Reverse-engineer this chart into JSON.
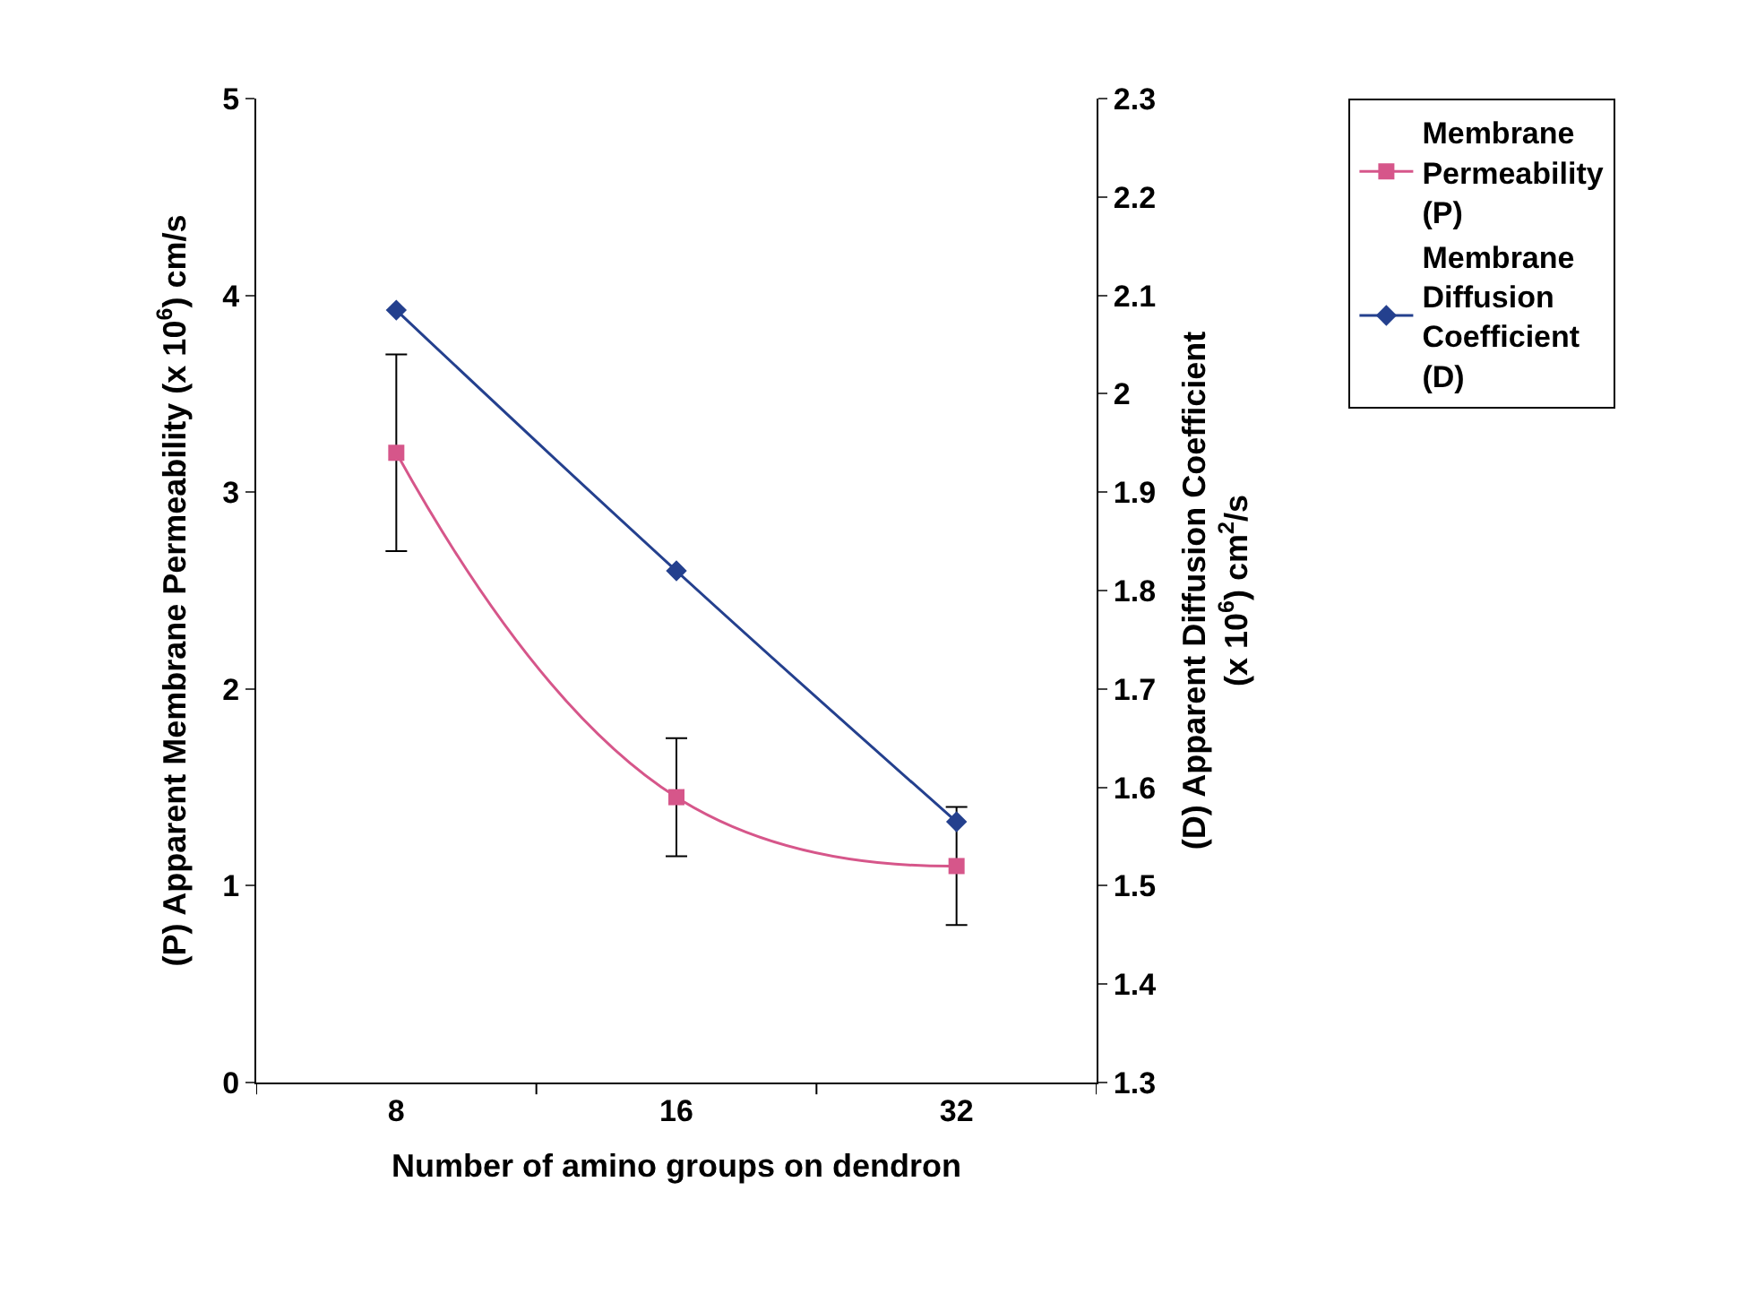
{
  "chart_data": {
    "type": "line",
    "xlabel": "Number of amino groups on dendron",
    "ylabel": "(P) Apparent Membrane Permeability (x 10$^{6}$) cm/s",
    "y2label": "(D) Apparent Diffusion Coefficient (x 10$^{6}$) cm$^{2}$/s",
    "categories": [
      "8",
      "16",
      "32"
    ],
    "series": [
      {
        "name": "Membrane Permeability (P)",
        "color": "#d6568a",
        "values": [
          3.2,
          1.45,
          1.1
        ],
        "errors": [
          0.5,
          0.3,
          0.3
        ],
        "marker": "square"
      },
      {
        "name": "Membrane Diffusion Coefficient (D)",
        "color": "#24408e",
        "values": [
          2.085,
          1.82,
          1.565
        ],
        "axis": "y2",
        "marker": "diamond"
      }
    ],
    "ylim": [
      0,
      5
    ],
    "yticks": [
      0,
      1,
      2,
      3,
      4,
      5
    ],
    "y2lim": [
      1.3,
      2.3
    ],
    "y2ticks": [
      1.3,
      1.4,
      1.5,
      1.6,
      1.7,
      1.8,
      1.9,
      2,
      2.1,
      2.2,
      2.3
    ],
    "legend": "top right"
  }
}
